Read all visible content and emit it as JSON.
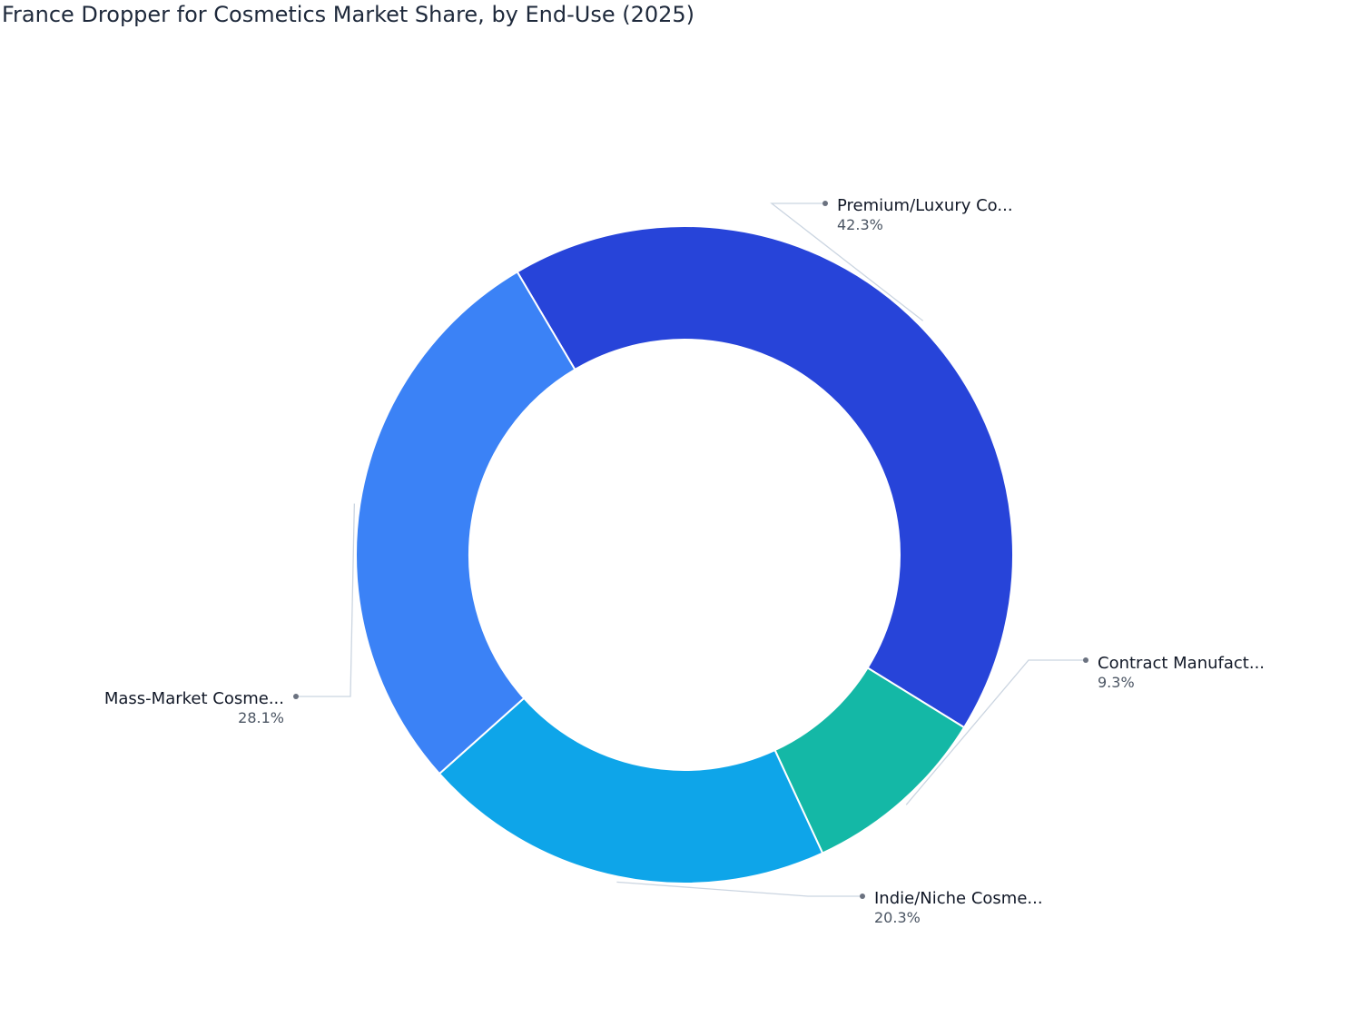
{
  "chart_data": {
    "type": "pie",
    "title": "France Dropper for Cosmetics Market Share, by End-Use (2025)",
    "slices": [
      {
        "name": "Premium/Luxury Co...",
        "value": 42.3,
        "label": "42.3%",
        "color": "#2744d9"
      },
      {
        "name": "Contract Manufact...",
        "value": 9.3,
        "label": "9.3%",
        "color": "#14b8a6"
      },
      {
        "name": "Indie/Niche Cosme...",
        "value": 20.3,
        "label": "20.3%",
        "color": "#0ea5e9"
      },
      {
        "name": "Mass-Market Cosme...",
        "value": 28.1,
        "label": "28.1%",
        "color": "#3b82f6"
      }
    ],
    "hole": true,
    "legend": "none"
  }
}
